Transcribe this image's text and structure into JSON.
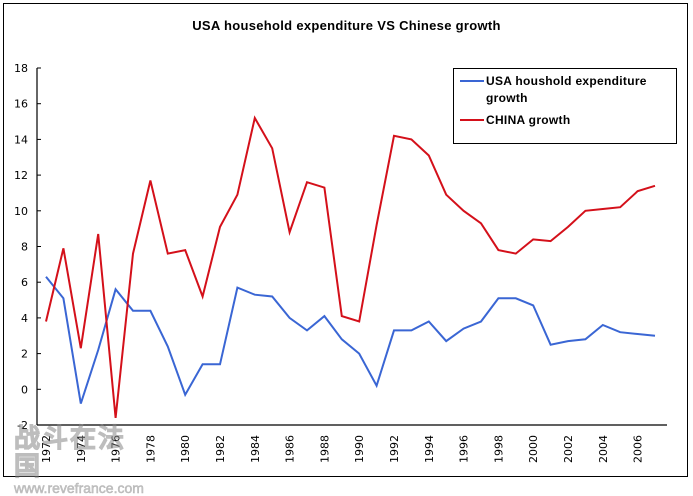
{
  "chart_data": {
    "type": "line",
    "title": "USA household expenditure VS Chinese growth",
    "xlabel": "",
    "ylabel": "",
    "ylim": [
      -2,
      18
    ],
    "yticks": [
      -2,
      0,
      2,
      4,
      6,
      8,
      10,
      12,
      14,
      16,
      18
    ],
    "xlim": [
      1972,
      2007
    ],
    "xtick_labels": [
      "1972",
      "1974",
      "1976",
      "1978",
      "1980",
      "1982",
      "1984",
      "1986",
      "1988",
      "1990",
      "1992",
      "1994",
      "1996",
      "1998",
      "2000",
      "2002",
      "2004",
      "2006"
    ],
    "grid": false,
    "legend_position": "top-right",
    "x": [
      1972,
      1973,
      1974,
      1975,
      1976,
      1977,
      1978,
      1979,
      1980,
      1981,
      1982,
      1983,
      1984,
      1985,
      1986,
      1987,
      1988,
      1989,
      1990,
      1991,
      1992,
      1993,
      1994,
      1995,
      1996,
      1997,
      1998,
      1999,
      2000,
      2001,
      2002,
      2003,
      2004,
      2005,
      2006,
      2007
    ],
    "series": [
      {
        "name": "USA houshold expenditure growth",
        "color": "#3a66d4",
        "values": [
          6.3,
          5.1,
          -0.8,
          2.2,
          5.6,
          4.4,
          4.4,
          2.4,
          -0.3,
          1.4,
          1.4,
          5.7,
          5.3,
          5.2,
          4.0,
          3.3,
          4.1,
          2.8,
          2.0,
          0.2,
          3.3,
          3.3,
          3.8,
          2.7,
          3.4,
          3.8,
          5.1,
          5.1,
          4.7,
          2.5,
          2.7,
          2.8,
          3.6,
          3.2,
          3.1,
          3.0
        ]
      },
      {
        "name": "CHINA growth",
        "color": "#d4101a",
        "values": [
          3.8,
          7.9,
          2.3,
          8.7,
          -1.6,
          7.6,
          11.7,
          7.6,
          7.8,
          5.2,
          9.1,
          10.9,
          15.2,
          13.5,
          8.8,
          11.6,
          11.3,
          4.1,
          3.8,
          9.2,
          14.2,
          14.0,
          13.1,
          10.9,
          10.0,
          9.3,
          7.8,
          7.6,
          8.4,
          8.3,
          9.1,
          10.0,
          10.1,
          10.2,
          11.1,
          11.4
        ]
      }
    ]
  },
  "watermark": {
    "text_cn": "战斗在法国",
    "url": "www.revefrance.com"
  }
}
